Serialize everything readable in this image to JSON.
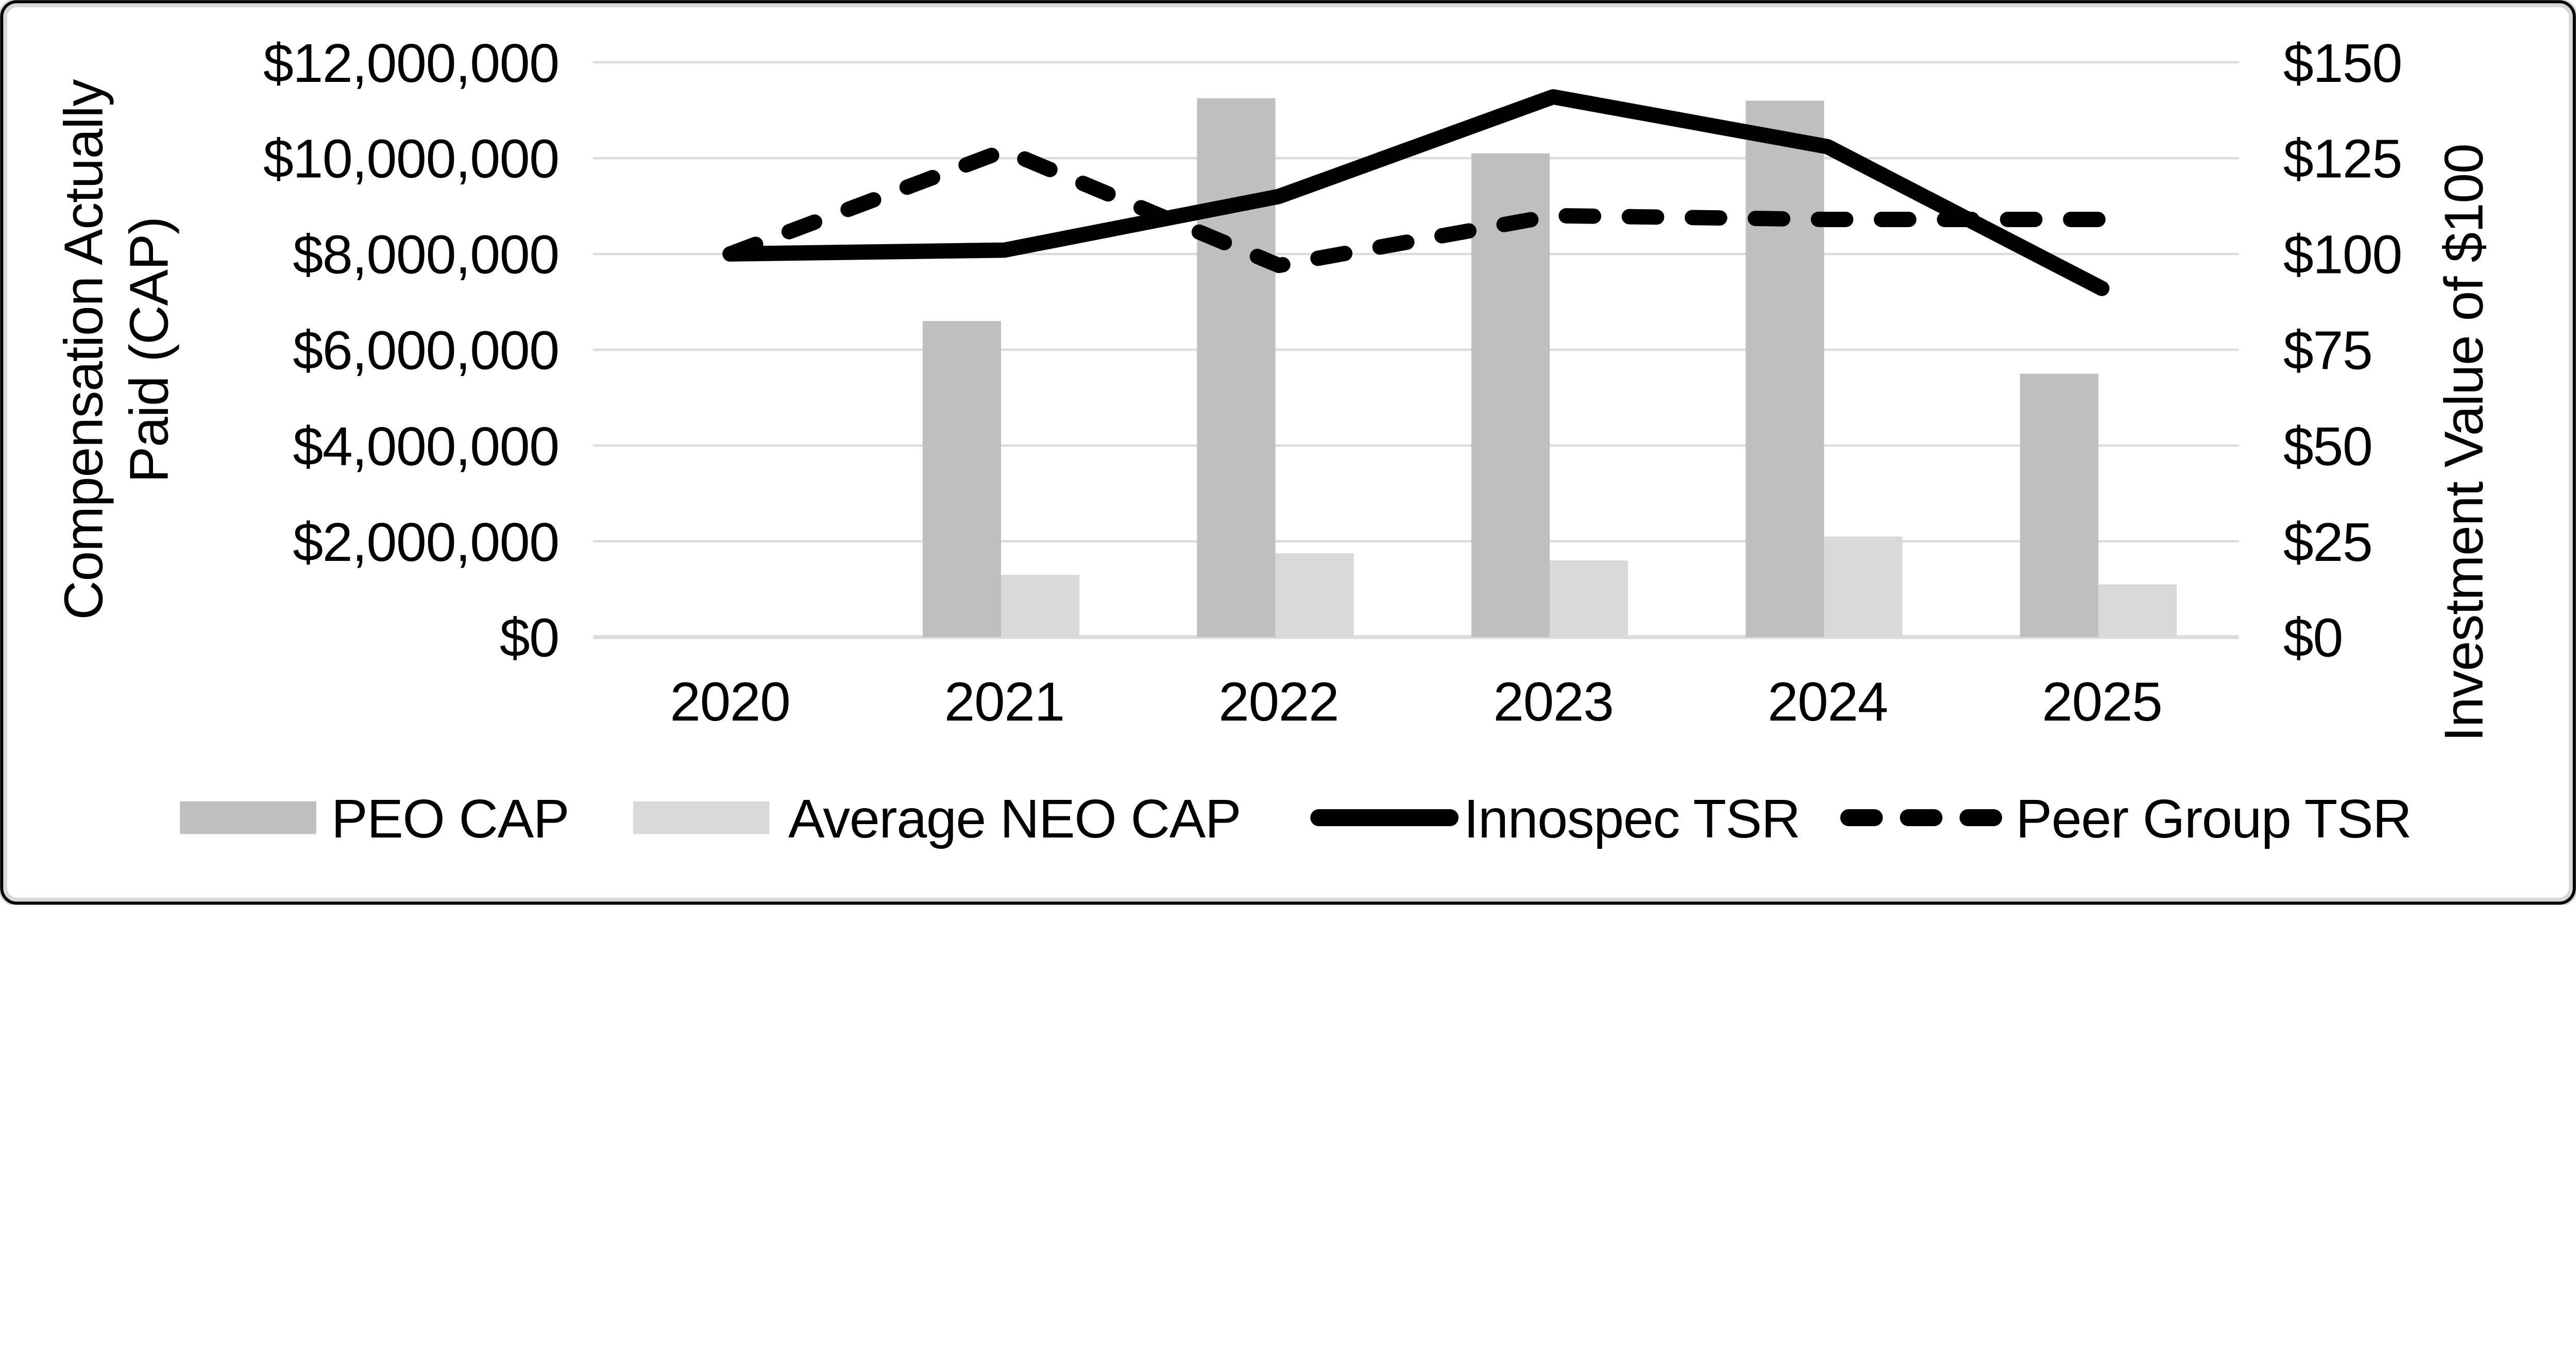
{
  "chart_data": {
    "type": "combo",
    "title": "",
    "categories": [
      "2020",
      "2021",
      "2022",
      "2023",
      "2024",
      "2025"
    ],
    "series": [
      {
        "name": "PEO CAP",
        "type": "bar",
        "axis": "left",
        "color": "#bfbfbf",
        "values": [
          null,
          6600000,
          11250000,
          10100000,
          11200000,
          5500000
        ]
      },
      {
        "name": "Average NEO CAP",
        "type": "bar",
        "axis": "left",
        "color": "#d9d9d9",
        "values": [
          null,
          1300000,
          1750000,
          1600000,
          2100000,
          1100000
        ]
      },
      {
        "name": "Innospec TSR",
        "type": "line",
        "line_style": "solid",
        "axis": "right",
        "color": "#000000",
        "values": [
          100,
          101,
          115,
          141,
          128,
          91
        ]
      },
      {
        "name": "Peer Group TSR",
        "type": "line",
        "line_style": "dashed",
        "axis": "right",
        "color": "#000000",
        "values": [
          100,
          127,
          97,
          110,
          109,
          109
        ]
      }
    ],
    "left_axis": {
      "title_line1": "Compensation Actually",
      "title_line2": "Paid (CAP)",
      "min": 0,
      "max": 12000000,
      "step": 2000000,
      "ticks": [
        "$12,000,000",
        "$10,000,000",
        "$8,000,000",
        "$6,000,000",
        "$4,000,000",
        "$2,000,000",
        "$0"
      ]
    },
    "right_axis": {
      "title": "Investment Value of $100",
      "min": 0,
      "max": 150,
      "step": 25,
      "ticks": [
        "$150",
        "$125",
        "$100",
        "$75",
        "$50",
        "$25",
        "$0"
      ]
    },
    "grid": true,
    "legend_position": "bottom",
    "colors": {
      "background": "#ffffff",
      "border_outer": "#000000",
      "border_inner": "#d8d8d8",
      "gridline": "#dcdcdc"
    }
  }
}
